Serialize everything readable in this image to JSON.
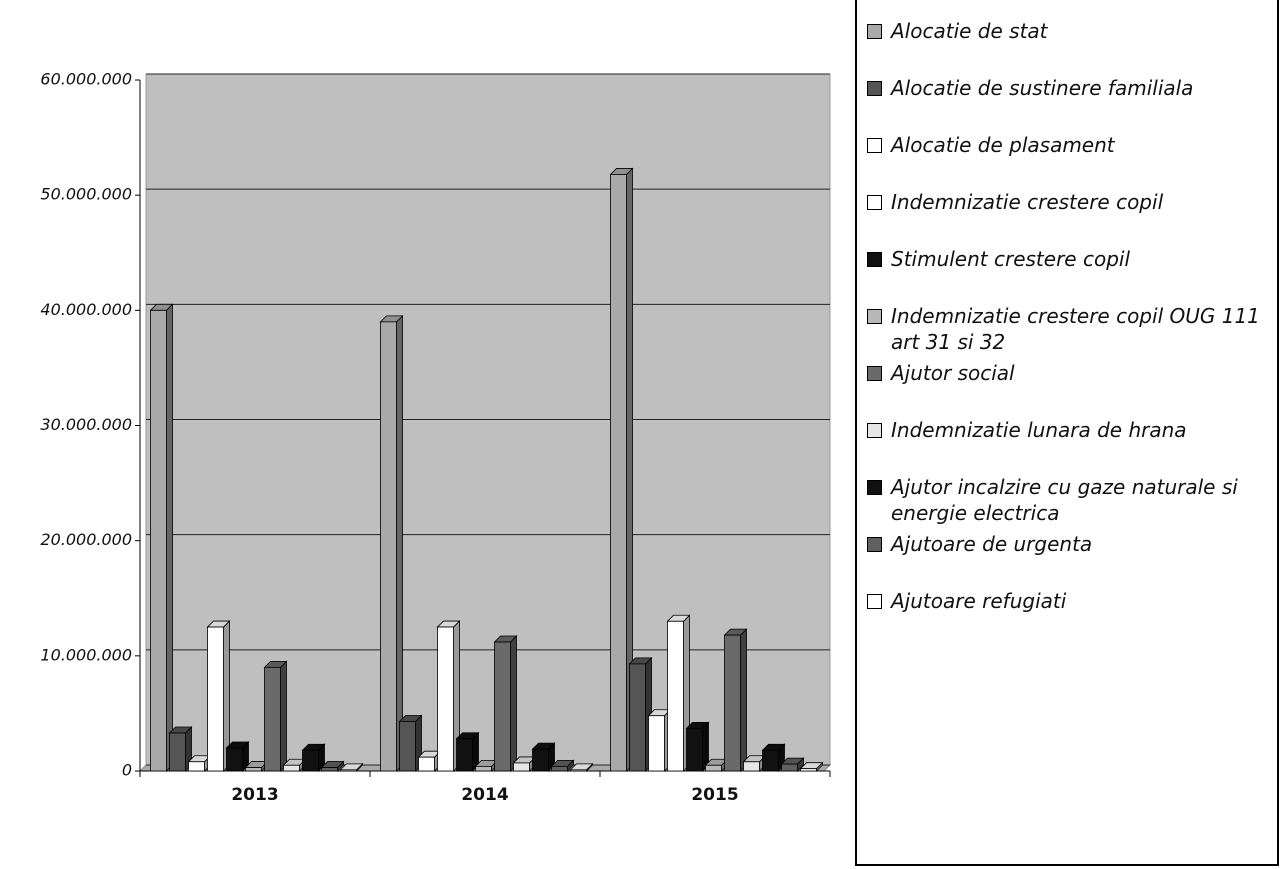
{
  "chart_data": {
    "type": "bar",
    "categories": [
      "2013",
      "2014",
      "2015"
    ],
    "ylim": [
      0,
      60000000
    ],
    "yticks": [
      {
        "value": 0,
        "label": "0"
      },
      {
        "value": 10000000,
        "label": "10.000.000"
      },
      {
        "value": 20000000,
        "label": "20.000.000"
      },
      {
        "value": 30000000,
        "label": "30.000.000"
      },
      {
        "value": 40000000,
        "label": "40.000.000"
      },
      {
        "value": 50000000,
        "label": "50.000.000"
      },
      {
        "value": 60000000,
        "label": "60.000.000"
      }
    ],
    "grid": true,
    "legend": "right",
    "series": [
      {
        "name": "Alocatie de stat",
        "color": "#a9a9a9",
        "values": [
          40000000,
          39000000,
          51800000
        ]
      },
      {
        "name": "Alocatie de sustinere familiala",
        "color": "#555555",
        "values": [
          3300000,
          4300000,
          9300000
        ]
      },
      {
        "name": "Alocatie de plasament",
        "color": "#ffffff",
        "values": [
          800000,
          1200000,
          4800000
        ]
      },
      {
        "name": "Indemnizatie crestere copil",
        "color": "#ffffff",
        "values": [
          12500000,
          12500000,
          13000000
        ]
      },
      {
        "name": "Stimulent crestere copil",
        "color": "#111111",
        "values": [
          2000000,
          2800000,
          3700000
        ]
      },
      {
        "name": "Indemnizatie crestere copil OUG 111 art 31 si 32",
        "color": "#b8b8b8",
        "values": [
          300000,
          400000,
          500000
        ]
      },
      {
        "name": "Ajutor social",
        "color": "#6a6a6a",
        "values": [
          9000000,
          11200000,
          11800000
        ]
      },
      {
        "name": "Indemnizatie lunara de hrana",
        "color": "#e6e6e6",
        "values": [
          500000,
          700000,
          800000
        ]
      },
      {
        "name": "Ajutor incalzire cu gaze naturale si energie electrica",
        "color": "#111111",
        "values": [
          1800000,
          1900000,
          1800000
        ]
      },
      {
        "name": "Ajutoare de urgenta",
        "color": "#606060",
        "values": [
          300000,
          400000,
          600000
        ]
      },
      {
        "name": "Ajutoare refugiati",
        "color": "#ffffff",
        "values": [
          100000,
          100000,
          200000
        ]
      }
    ]
  }
}
